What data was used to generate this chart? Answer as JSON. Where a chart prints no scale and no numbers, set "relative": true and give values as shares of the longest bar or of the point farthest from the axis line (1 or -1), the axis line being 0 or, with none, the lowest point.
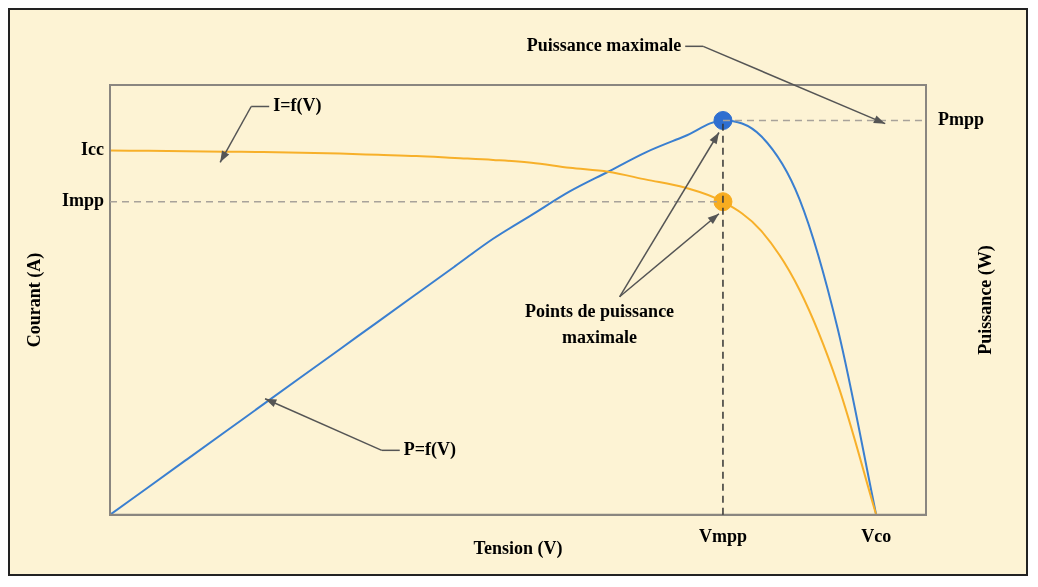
{
  "chart_data": {
    "type": "line",
    "relative": true,
    "xlabel": "Tension (V)",
    "ylabel": "Courant (A)",
    "y2label": "Puissance (W)",
    "categories": [
      null,
      null,
      null,
      null,
      null,
      null,
      null,
      null,
      null,
      null,
      null,
      null,
      null,
      null,
      null,
      null,
      "Vmpp",
      null,
      null,
      null,
      "Vco",
      null
    ],
    "series": [
      {
        "marker": "none",
        "color": "#f7b02a",
        "values": [
          0.924,
          0.923,
          0.922,
          0.921,
          0.92,
          0.918,
          0.916,
          0.913,
          0.91,
          0.905,
          0.9,
          0.893,
          0.88,
          0.87,
          0.85,
          0.83,
          0.794,
          0.72,
          0.57,
          0.33,
          0,
          null
        ]
      },
      {
        "marker": "none",
        "color": "#3a7fd0",
        "values": [
          0,
          0.07,
          0.14,
          0.21,
          0.28,
          0.35,
          0.42,
          0.49,
          0.56,
          0.63,
          0.7,
          0.76,
          0.82,
          0.87,
          0.92,
          0.96,
          1,
          0.96,
          0.8,
          0.47,
          0,
          null
        ]
      },
      {
        "type": "scatter",
        "marker": "circle",
        "color": "#2f6fd0",
        "x": [
          "Vmpp"
        ],
        "values": [
          1
        ]
      },
      {
        "type": "scatter",
        "marker": "circle",
        "color": "#f7ac20",
        "x": [
          "Vmpp"
        ],
        "values": [
          0.794
        ]
      }
    ],
    "ref_lines": [
      {
        "axis": "y",
        "value": 0.794,
        "label": "Impp",
        "color": "#a8a29a",
        "line_style": "dashed"
      },
      {
        "axis": "y",
        "value": 1,
        "label": "Pmpp",
        "color": "#a8a29a",
        "line_style": "dashed"
      },
      {
        "axis": "x",
        "value": "Vmpp",
        "color": "#333333",
        "line_style": "dashed"
      }
    ],
    "annotations": [
      "Icc",
      "I=f(V)",
      "P=f(V)",
      "Puissance maximale",
      "Points de puissance maximale"
    ],
    "grid": false,
    "legend": false
  }
}
